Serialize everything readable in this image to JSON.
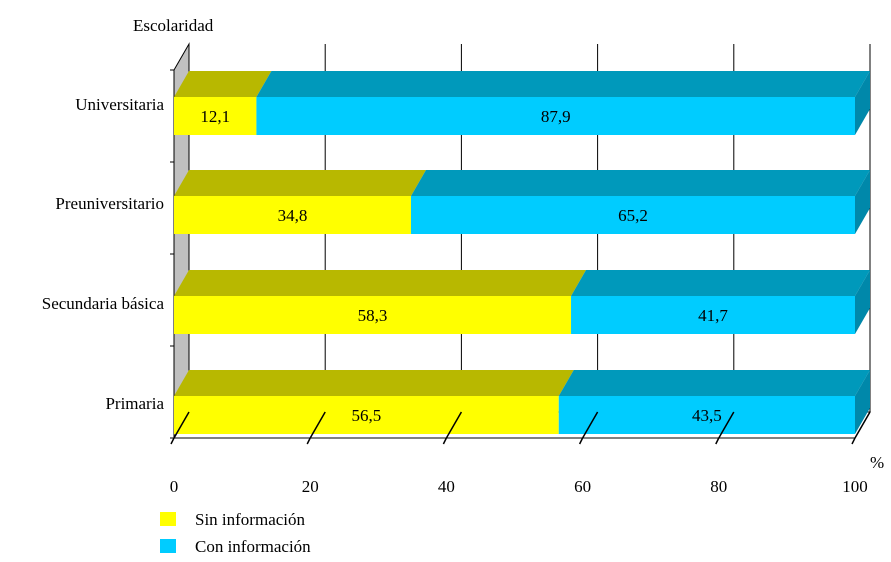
{
  "chart_data": {
    "type": "bar",
    "orientation": "horizontal",
    "stacked": true,
    "style": "3d",
    "ylabel": "Escolaridad",
    "xlabel": "%",
    "xlim": [
      0,
      100
    ],
    "xticks": [
      0,
      20,
      40,
      60,
      80,
      100
    ],
    "categories": [
      "Universitaria",
      "Preuniversitario",
      "Secundaria básica",
      "Primaria"
    ],
    "series": [
      {
        "name": "Sin información",
        "color": "#ffff00",
        "values": [
          12.1,
          34.8,
          58.3,
          56.5
        ],
        "labels": [
          "12,1",
          "34,8",
          "58,3",
          "56,5"
        ]
      },
      {
        "name": "Con información",
        "color": "#00ccff",
        "values": [
          87.9,
          65.2,
          41.7,
          43.5
        ],
        "labels": [
          "87,9",
          "65,2",
          "41,7",
          "43,5"
        ]
      }
    ],
    "grid": true,
    "legend": "bottom-left"
  }
}
